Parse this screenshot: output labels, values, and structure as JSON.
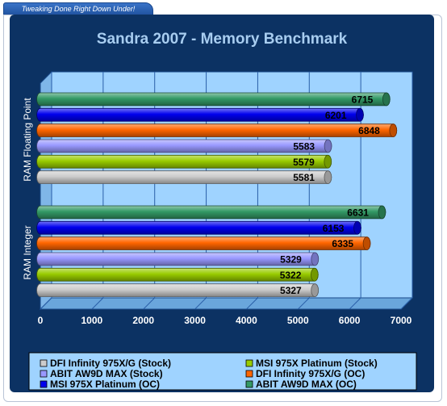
{
  "header": {
    "tagline": "Tweaking Done Right Down Under!"
  },
  "chart_data": {
    "type": "bar",
    "orientation": "horizontal",
    "title": "Sandra 2007 - Memory Benchmark",
    "categories": [
      "RAM Floating Point",
      "RAM Integer"
    ],
    "xlim": [
      0,
      7000
    ],
    "xticks": [
      0,
      1000,
      2000,
      3000,
      4000,
      5000,
      6000,
      7000
    ],
    "grid": true,
    "legend_position": "bottom",
    "series": [
      {
        "name": "DFI Infinity 975X/G (Stock)",
        "color": "#cccccc",
        "values": [
          5581,
          5327
        ]
      },
      {
        "name": "MSI 975X Platinum (Stock)",
        "color": "#99cc00",
        "values": [
          5579,
          5322
        ]
      },
      {
        "name": "ABIT AW9D MAX (Stock)",
        "color": "#9999ff",
        "values": [
          5583,
          5329
        ]
      },
      {
        "name": "DFI Infinity 975X/G (OC)",
        "color": "#ff6600",
        "values": [
          6848,
          6335
        ]
      },
      {
        "name": "MSI 975X Platinum (OC)",
        "color": "#0000ee",
        "values": [
          6201,
          6153
        ]
      },
      {
        "name": "ABIT AW9D MAX (OC)",
        "color": "#339966",
        "values": [
          6715,
          6631
        ]
      }
    ]
  }
}
